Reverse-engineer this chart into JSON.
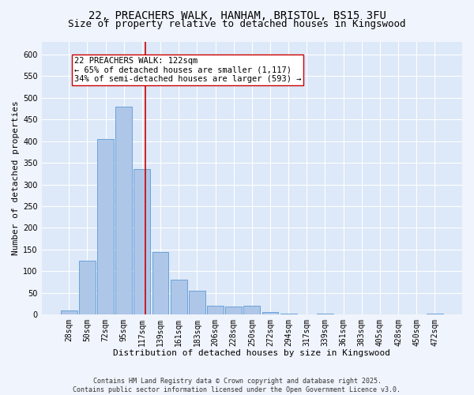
{
  "title_line1": "22, PREACHERS WALK, HANHAM, BRISTOL, BS15 3FU",
  "title_line2": "Size of property relative to detached houses in Kingswood",
  "xlabel": "Distribution of detached houses by size in Kingswood",
  "ylabel": "Number of detached properties",
  "bar_labels": [
    "28sqm",
    "50sqm",
    "72sqm",
    "95sqm",
    "117sqm",
    "139sqm",
    "161sqm",
    "183sqm",
    "206sqm",
    "228sqm",
    "250sqm",
    "272sqm",
    "294sqm",
    "317sqm",
    "339sqm",
    "361sqm",
    "383sqm",
    "405sqm",
    "428sqm",
    "450sqm",
    "472sqm"
  ],
  "bar_values": [
    10,
    125,
    405,
    480,
    335,
    145,
    80,
    55,
    20,
    18,
    20,
    5,
    2,
    0,
    2,
    0,
    0,
    0,
    0,
    0,
    2
  ],
  "bar_color": "#aec6e8",
  "bar_edge_color": "#5b9bd5",
  "background_color": "#dde8f8",
  "grid_color": "#ffffff",
  "vline_color": "#cc0000",
  "vline_pos": 4.18,
  "annotation_text": "22 PREACHERS WALK: 122sqm\n← 65% of detached houses are smaller (1,117)\n34% of semi-detached houses are larger (593) →",
  "annotation_box_color": "#ffffff",
  "annotation_box_edge": "#cc0000",
  "ylim": [
    0,
    630
  ],
  "yticks": [
    0,
    50,
    100,
    150,
    200,
    250,
    300,
    350,
    400,
    450,
    500,
    550,
    600
  ],
  "footnote": "Contains HM Land Registry data © Crown copyright and database right 2025.\nContains public sector information licensed under the Open Government Licence v3.0.",
  "title_fontsize": 10,
  "subtitle_fontsize": 9,
  "axis_label_fontsize": 8,
  "tick_fontsize": 7,
  "annot_fontsize": 7.5,
  "fig_facecolor": "#f0f4fc"
}
